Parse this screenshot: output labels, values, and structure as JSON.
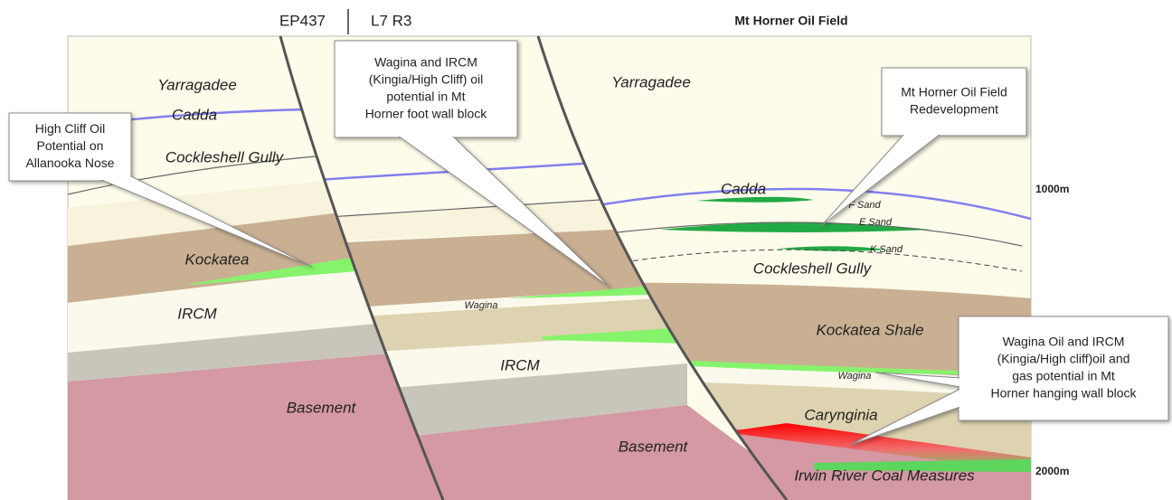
{
  "header": {
    "left_block": "EP437",
    "right_block": "L7 R3",
    "title": "Mt Horner Oil Field"
  },
  "depth_labels": [
    "1000m",
    "2000m"
  ],
  "formations": [
    "Yarragadee",
    "Cadda",
    "Cockleshell Gully",
    "Kockatea",
    "IRCM",
    "Basement",
    "Wagina",
    "IRCM",
    "Yarragadee",
    "Cadda",
    "F Sand",
    "E Sand",
    "K Sand",
    "Cockleshell Gully",
    "Kockatea Shale",
    "Wagina",
    "Carynginia",
    "Basement",
    "Irwin River Coal Measures"
  ],
  "callouts": [
    {
      "lines": [
        "High Cliff Oil",
        "Potential on",
        "Allanooka Nose"
      ]
    },
    {
      "lines": [
        "Wagina and IRCM",
        "(Kingia/High Cliff) oil",
        "potential in  Mt",
        "Horner foot wall block"
      ]
    },
    {
      "lines": [
        "Mt Horner Oil Field",
        "Redevelopment"
      ]
    },
    {
      "lines": [
        "Wagina Oil and IRCM",
        "(Kingia/High cliff)oil and",
        "gas potential in  Mt",
        "Horner hanging wall block"
      ]
    }
  ]
}
